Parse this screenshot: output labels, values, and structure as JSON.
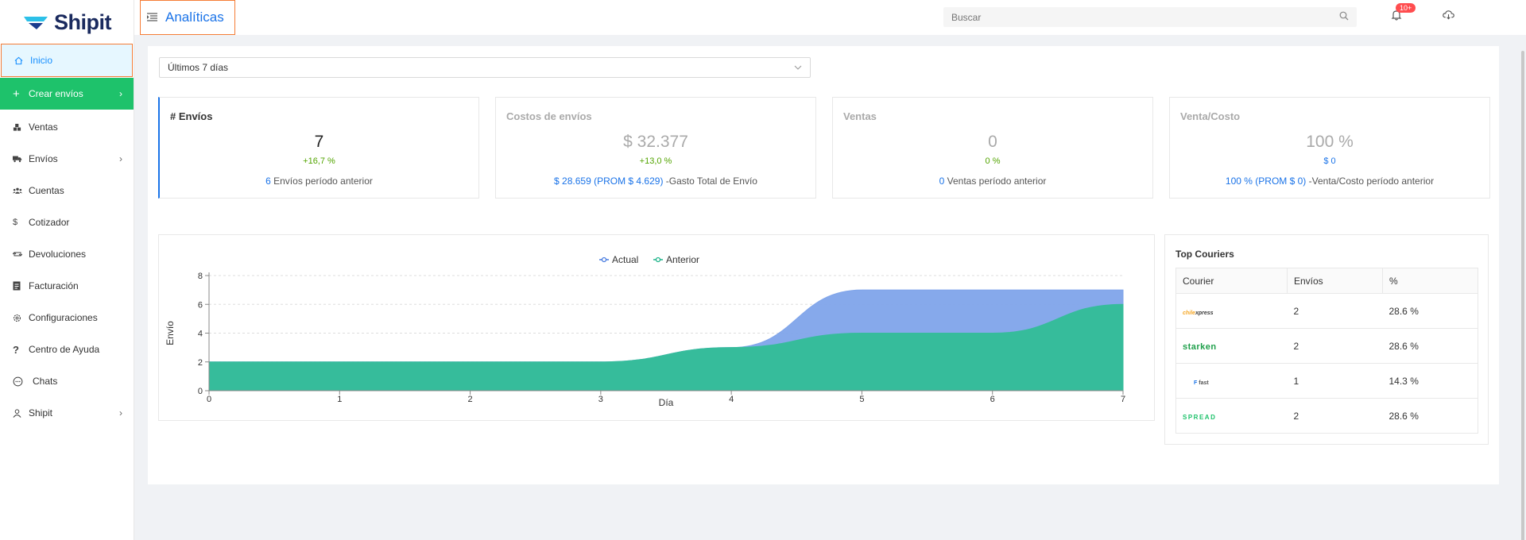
{
  "brand": {
    "name": "Shipit"
  },
  "sidebar": {
    "items": [
      {
        "label": "Inicio",
        "icon": "home-icon",
        "active": true
      },
      {
        "label": "Crear envíos",
        "icon": "plus-icon",
        "chevron": true,
        "highlight": true
      },
      {
        "label": "Ventas",
        "icon": "boxes-icon"
      },
      {
        "label": "Envíos",
        "icon": "truck-icon",
        "chevron": true
      },
      {
        "label": "Cuentas",
        "icon": "users-icon"
      },
      {
        "label": "Cotizador",
        "icon": "dollar-icon"
      },
      {
        "label": "Devoluciones",
        "icon": "return-icon"
      },
      {
        "label": "Facturación",
        "icon": "invoice-icon"
      },
      {
        "label": "Configuraciones",
        "icon": "gear-icon"
      },
      {
        "label": "Centro de Ayuda",
        "icon": "question-icon"
      },
      {
        "label": "Chats",
        "icon": "chat-icon"
      },
      {
        "label": "Shipit",
        "icon": "user-icon",
        "chevron": true
      }
    ]
  },
  "header": {
    "title": "Analíticas",
    "search_placeholder": "Buscar",
    "notifications_badge": "10+"
  },
  "filter": {
    "selected": "Últimos 7 días"
  },
  "stats": [
    {
      "title": "# Envíos",
      "value": "7",
      "delta": "+16,7 %",
      "prev_highlight": "6",
      "prev_text": " Envíos período anterior"
    },
    {
      "title": "Costos de envíos",
      "value": "$ 32.377",
      "delta": "+13,0 %",
      "prev_highlight": "$ 28.659 (PROM $ 4.629)",
      "prev_text": " -Gasto Total de Envío"
    },
    {
      "title": "Ventas",
      "value": "0",
      "delta": "0 %",
      "prev_highlight": "0",
      "prev_text": " Ventas período anterior"
    },
    {
      "title": "Venta/Costo",
      "value": "100 %",
      "delta": "$ 0",
      "prev_highlight": "100 % (PROM $ 0)",
      "prev_text": " -Venta/Costo período anterior"
    }
  ],
  "chart_data": {
    "type": "area",
    "x": [
      0,
      1,
      2,
      3,
      4,
      5,
      6,
      7
    ],
    "series": [
      {
        "name": "Actual",
        "values": [
          2,
          2,
          2,
          2,
          3,
          7,
          7,
          7
        ],
        "color": "#7fa4ea"
      },
      {
        "name": "Anterior",
        "values": [
          2,
          2,
          2,
          2,
          3,
          4,
          4,
          6
        ],
        "color": "#36bc9b"
      }
    ],
    "xlabel": "Día",
    "ylabel": "Envío",
    "ylim": [
      0,
      8
    ],
    "yticks": [
      0,
      2,
      4,
      6,
      8
    ],
    "grid": true,
    "legend": "top-center"
  },
  "couriers": {
    "title": "Top Couriers",
    "columns": [
      "Courier",
      "Envíos",
      "%"
    ],
    "rows": [
      {
        "logo": "chilexpress",
        "logo_prefix": "chile",
        "logo_suffix": "xpress",
        "envios": "2",
        "pct": "28.6 %"
      },
      {
        "logo": "starken",
        "logo_text": "starken",
        "envios": "2",
        "pct": "28.6 %"
      },
      {
        "logo": "fast",
        "logo_prefix": "F",
        "logo_suffix": "fast",
        "envios": "1",
        "pct": "14.3 %"
      },
      {
        "logo": "spread",
        "logo_text": "SPREAD",
        "envios": "2",
        "pct": "28.6 %"
      }
    ]
  }
}
